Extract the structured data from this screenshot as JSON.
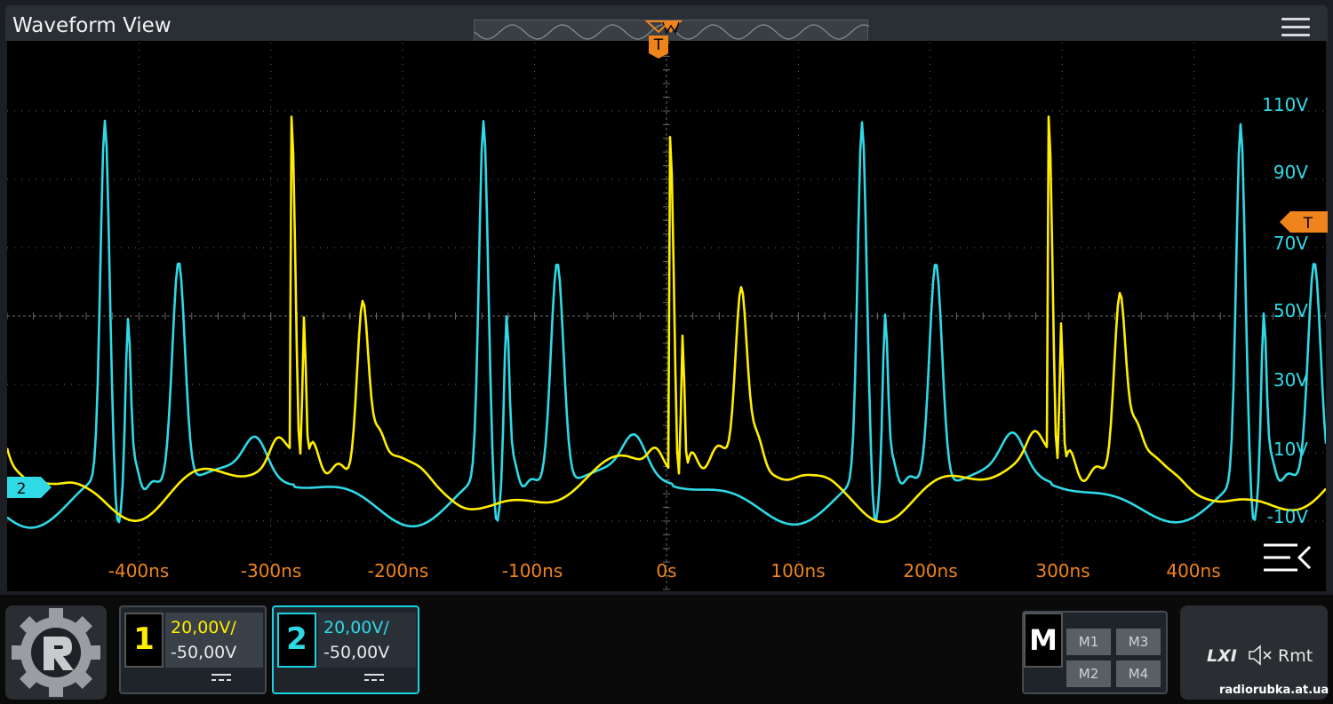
{
  "window": {
    "title": "Waveform View"
  },
  "colors": {
    "ch1": "#ffee00",
    "ch2": "#2fd9e6",
    "trigger": "#f0841c",
    "grid": "#6a6a6a"
  },
  "icons": {
    "menu": "hamburger-menu-icon",
    "collapse": "collapse-panel-icon",
    "logo": "gear-logo-icon",
    "mute": "speaker-mute-icon"
  },
  "plot": {
    "y_labels": [
      "110V",
      "90V",
      "70V",
      "50V",
      "30V",
      "10V",
      "-10V"
    ],
    "x_labels": [
      "-400ns",
      "-300ns",
      "-200ns",
      "-100ns",
      "0s",
      "100ns",
      "200ns",
      "300ns",
      "400ns"
    ],
    "trigger_marker": "T",
    "channel2_marker": "2"
  },
  "channels": [
    {
      "number": "1",
      "scale": "20,00V/",
      "offset": "-50,00V"
    },
    {
      "number": "2",
      "scale": "20,00V/",
      "offset": "-50,00V"
    }
  ],
  "math": {
    "key": "M",
    "buttons": [
      "M1",
      "M3",
      "M2",
      "M4"
    ]
  },
  "status": {
    "lxi": "LXI",
    "remote": "Rmt"
  },
  "watermark": "radiorubka.at.ua"
}
